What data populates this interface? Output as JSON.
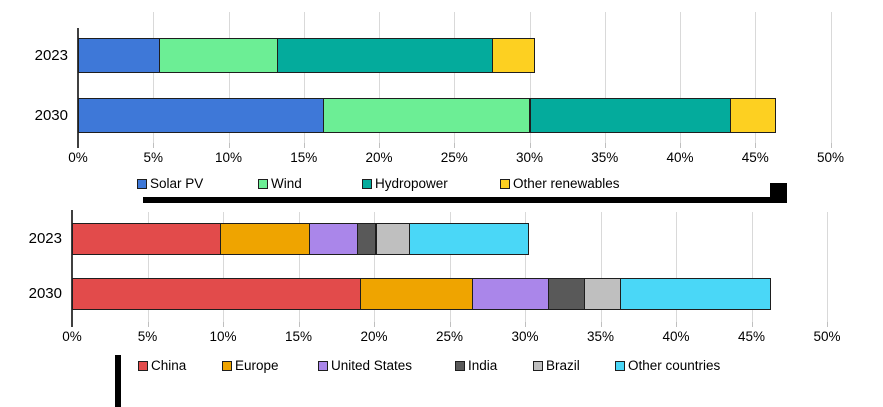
{
  "colors": {
    "background": "#FFFFFF",
    "grid": "#D9D9D9",
    "axis": "#404040",
    "segment_border": "#1E1E1E",
    "redaction_marks": "#000000"
  },
  "chart_data": [
    {
      "type": "bar",
      "orientation": "horizontal",
      "stacked": true,
      "title": "",
      "categories": [
        "2023",
        "2030"
      ],
      "series": [
        {
          "name": "Solar PV",
          "color": "#3E78D8",
          "values": [
            5.4,
            16.3
          ]
        },
        {
          "name": "Wind",
          "color": "#6CEE95",
          "values": [
            7.8,
            13.7
          ]
        },
        {
          "name": "Hydropower",
          "color": "#04AB9C",
          "values": [
            14.3,
            13.3
          ]
        },
        {
          "name": "Other renewables",
          "color": "#FDD021",
          "values": [
            2.8,
            3.0
          ]
        }
      ],
      "xlim": [
        0,
        50
      ],
      "x_tick_labels": [
        "0%",
        "5%",
        "10%",
        "15%",
        "20%",
        "25%",
        "30%",
        "35%",
        "40%",
        "45%",
        "50%"
      ],
      "grid": true,
      "legend_position": "bottom"
    },
    {
      "type": "bar",
      "orientation": "horizontal",
      "stacked": true,
      "title": "",
      "categories": [
        "2023",
        "2030"
      ],
      "series": [
        {
          "name": "China",
          "color": "#E24B4B",
          "values": [
            9.8,
            19.1
          ]
        },
        {
          "name": "Europe",
          "color": "#EFA400",
          "values": [
            5.9,
            7.4
          ]
        },
        {
          "name": "United States",
          "color": "#AA86EA",
          "values": [
            3.2,
            5.0
          ]
        },
        {
          "name": "India",
          "color": "#595959",
          "values": [
            1.2,
            2.4
          ]
        },
        {
          "name": "Brazil",
          "color": "#BFBFBF",
          "values": [
            2.2,
            2.4
          ]
        },
        {
          "name": "Other countries",
          "color": "#4AD7F7",
          "values": [
            7.9,
            9.9
          ]
        }
      ],
      "xlim": [
        0,
        50
      ],
      "x_tick_labels": [
        "0%",
        "5%",
        "10%",
        "15%",
        "20%",
        "25%",
        "30%",
        "35%",
        "40%",
        "45%",
        "50%"
      ],
      "grid": true,
      "legend_position": "bottom"
    }
  ]
}
